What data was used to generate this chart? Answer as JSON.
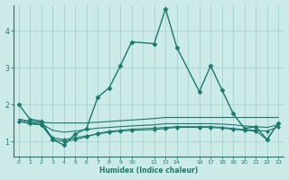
{
  "xlabel": "Humidex (Indice chaleur)",
  "bg_color": "#cceae8",
  "grid_color": "#aad4d0",
  "line_color": "#1a7a6e",
  "ylim": [
    0.6,
    4.7
  ],
  "xlim": [
    -0.5,
    23.5
  ],
  "series": [
    {
      "x": [
        0,
        1,
        2,
        3,
        4,
        5,
        6,
        7,
        8,
        9,
        10,
        12,
        13,
        14,
        16,
        17,
        18,
        19,
        20,
        21,
        22,
        23
      ],
      "y": [
        2.0,
        1.6,
        1.55,
        1.05,
        0.9,
        1.2,
        1.35,
        2.2,
        2.45,
        3.05,
        3.7,
        3.65,
        4.6,
        3.55,
        2.35,
        3.05,
        2.4,
        1.75,
        1.35,
        1.4,
        1.05,
        1.5
      ],
      "marker": "D",
      "markersize": 2.5,
      "linewidth": 1.0
    },
    {
      "x": [
        0,
        1,
        2,
        3,
        4,
        5,
        6,
        7,
        8,
        9,
        10,
        12,
        13,
        14,
        16,
        17,
        18,
        19,
        20,
        21,
        22,
        23
      ],
      "y": [
        1.6,
        1.55,
        1.52,
        1.5,
        1.5,
        1.5,
        1.5,
        1.52,
        1.54,
        1.56,
        1.58,
        1.62,
        1.65,
        1.65,
        1.65,
        1.65,
        1.65,
        1.65,
        1.65,
        1.65,
        1.65,
        1.65
      ],
      "marker": null,
      "markersize": 0,
      "linewidth": 0.8
    },
    {
      "x": [
        0,
        1,
        2,
        3,
        4,
        5,
        6,
        7,
        8,
        9,
        10,
        12,
        13,
        14,
        16,
        17,
        18,
        19,
        20,
        21,
        22,
        23
      ],
      "y": [
        1.6,
        1.52,
        1.48,
        1.3,
        1.25,
        1.28,
        1.32,
        1.36,
        1.38,
        1.4,
        1.42,
        1.45,
        1.48,
        1.48,
        1.48,
        1.48,
        1.47,
        1.45,
        1.42,
        1.4,
        1.38,
        1.45
      ],
      "marker": null,
      "markersize": 0,
      "linewidth": 0.8
    },
    {
      "x": [
        0,
        1,
        2,
        3,
        4,
        5,
        6,
        7,
        8,
        9,
        10,
        12,
        13,
        14,
        16,
        17,
        18,
        19,
        20,
        21,
        22,
        23
      ],
      "y": [
        1.55,
        1.48,
        1.45,
        1.05,
        1.0,
        1.05,
        1.12,
        1.22,
        1.27,
        1.3,
        1.33,
        1.36,
        1.38,
        1.4,
        1.4,
        1.4,
        1.38,
        1.35,
        1.32,
        1.3,
        1.28,
        1.4
      ],
      "marker": "D",
      "markersize": 2.0,
      "linewidth": 0.8
    },
    {
      "x": [
        0,
        1,
        2,
        3,
        4,
        5,
        6,
        7,
        8,
        9,
        10,
        12,
        13,
        14,
        16,
        17,
        18,
        19,
        20,
        21,
        22,
        23
      ],
      "y": [
        1.55,
        1.48,
        1.45,
        1.1,
        1.05,
        1.1,
        1.15,
        1.2,
        1.25,
        1.28,
        1.3,
        1.32,
        1.35,
        1.38,
        1.38,
        1.38,
        1.36,
        1.33,
        1.3,
        1.28,
        1.05,
        1.5
      ],
      "marker": "D",
      "markersize": 2.0,
      "linewidth": 0.8
    }
  ],
  "yticks": [
    1,
    2,
    3,
    4
  ],
  "xtick_positions": [
    0,
    1,
    2,
    3,
    4,
    5,
    6,
    7,
    8,
    9,
    10,
    12,
    13,
    14,
    16,
    17,
    18,
    19,
    20,
    21,
    22,
    23
  ],
  "xtick_labels": [
    "0",
    "1",
    "2",
    "3",
    "4",
    "5",
    "6",
    "7",
    "8",
    "9",
    "10",
    "12",
    "13",
    "14",
    "16",
    "17",
    "18",
    "19",
    "20",
    "21",
    "22",
    "23"
  ]
}
